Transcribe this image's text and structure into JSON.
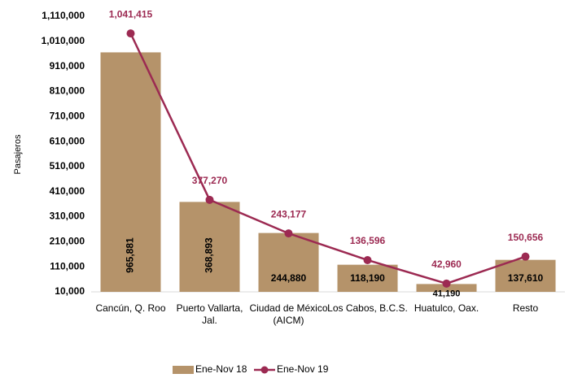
{
  "chart_data": {
    "type": "bar_line",
    "y_label": "Pasajeros",
    "categories": [
      "Cancún, Q. Roo",
      "Puerto Vallarta, Jal.",
      "Ciudad de México (AICM)",
      "Los Cabos, B.C.S.",
      "Huatulco, Oax.",
      "Resto"
    ],
    "series": [
      {
        "name": "Ene-Nov 18",
        "type": "bar",
        "color": "#b5936a",
        "values": [
          965881,
          368893,
          244880,
          118190,
          41190,
          137610
        ],
        "value_labels": [
          "965,881",
          "368,893",
          "244,880",
          "118,190",
          "41,190",
          "137,610"
        ]
      },
      {
        "name": "Ene-Nov 19",
        "type": "line",
        "color": "#9c2a52",
        "values": [
          1041415,
          377270,
          243177,
          136596,
          42960,
          150656
        ],
        "value_labels": [
          "1,041,415",
          "377,270",
          "243,177",
          "136,596",
          "42,960",
          "150,656"
        ]
      }
    ],
    "ylim": [
      10000,
      1110000
    ],
    "yticks": [
      {
        "value": 10000,
        "label": "10,000"
      },
      {
        "value": 110000,
        "label": "110,000"
      },
      {
        "value": 210000,
        "label": "210,000"
      },
      {
        "value": 310000,
        "label": "310,000"
      },
      {
        "value": 410000,
        "label": "410,000"
      },
      {
        "value": 510000,
        "label": "510,000"
      },
      {
        "value": 610000,
        "label": "610,000"
      },
      {
        "value": 710000,
        "label": "710,000"
      },
      {
        "value": 810000,
        "label": "810,000"
      },
      {
        "value": 910000,
        "label": "910,000"
      },
      {
        "value": 1010000,
        "label": "1,010,000"
      },
      {
        "value": 1110000,
        "label": "1,110,000"
      }
    ],
    "legend": "bottom"
  }
}
